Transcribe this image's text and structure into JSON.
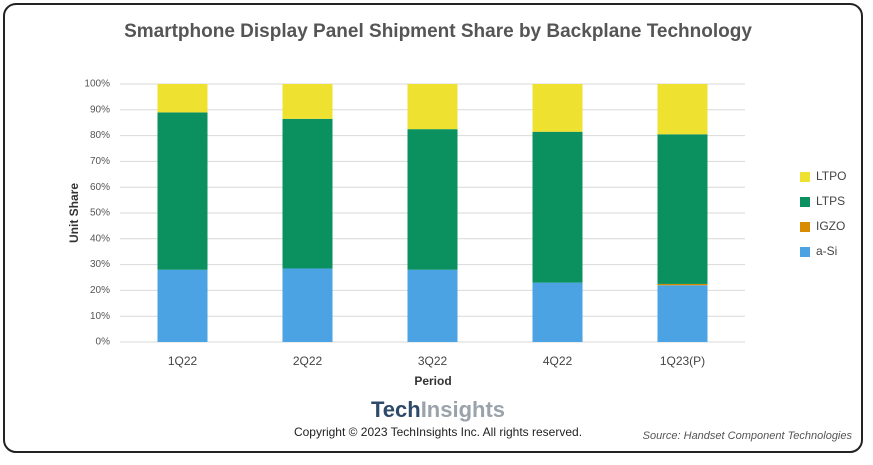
{
  "chart_data": {
    "type": "bar",
    "stacked": true,
    "title": "Smartphone Display Panel Shipment Share by Backplane Technology",
    "x_label": "Period",
    "y_label": "Unit Share",
    "categories": [
      "1Q22",
      "2Q22",
      "3Q22",
      "4Q22",
      "1Q23(P)"
    ],
    "series": [
      {
        "name": "a-Si",
        "color": "#4ba3e3",
        "values": [
          28,
          28.5,
          28,
          23,
          22
        ]
      },
      {
        "name": "IGZO",
        "color": "#d98c00",
        "values": [
          0,
          0,
          0,
          0,
          0.5
        ]
      },
      {
        "name": "LTPS",
        "color": "#0b9160",
        "values": [
          61,
          58,
          54.5,
          58.5,
          58
        ]
      },
      {
        "name": "LTPO",
        "color": "#efe130",
        "values": [
          11,
          13.5,
          17.5,
          18.5,
          19.5
        ]
      }
    ],
    "ylim": [
      0,
      100
    ],
    "yticks": [
      {
        "value": 0,
        "label": "0%"
      },
      {
        "value": 10,
        "label": "10%"
      },
      {
        "value": 20,
        "label": "20%"
      },
      {
        "value": 30,
        "label": "30%"
      },
      {
        "value": 40,
        "label": "40%"
      },
      {
        "value": 50,
        "label": "50%"
      },
      {
        "value": 60,
        "label": "60%"
      },
      {
        "value": 70,
        "label": "70%"
      },
      {
        "value": 80,
        "label": "80%"
      },
      {
        "value": 90,
        "label": "90%"
      },
      {
        "value": 100,
        "label": "100%"
      }
    ],
    "grid": true,
    "legend": "right",
    "logo_primary": "Tech",
    "logo_secondary": "Insights",
    "copyright": "Copyright © 2023 TechInsights Inc.  All rights reserved.",
    "source": "Source: Handset Component Technologies"
  }
}
